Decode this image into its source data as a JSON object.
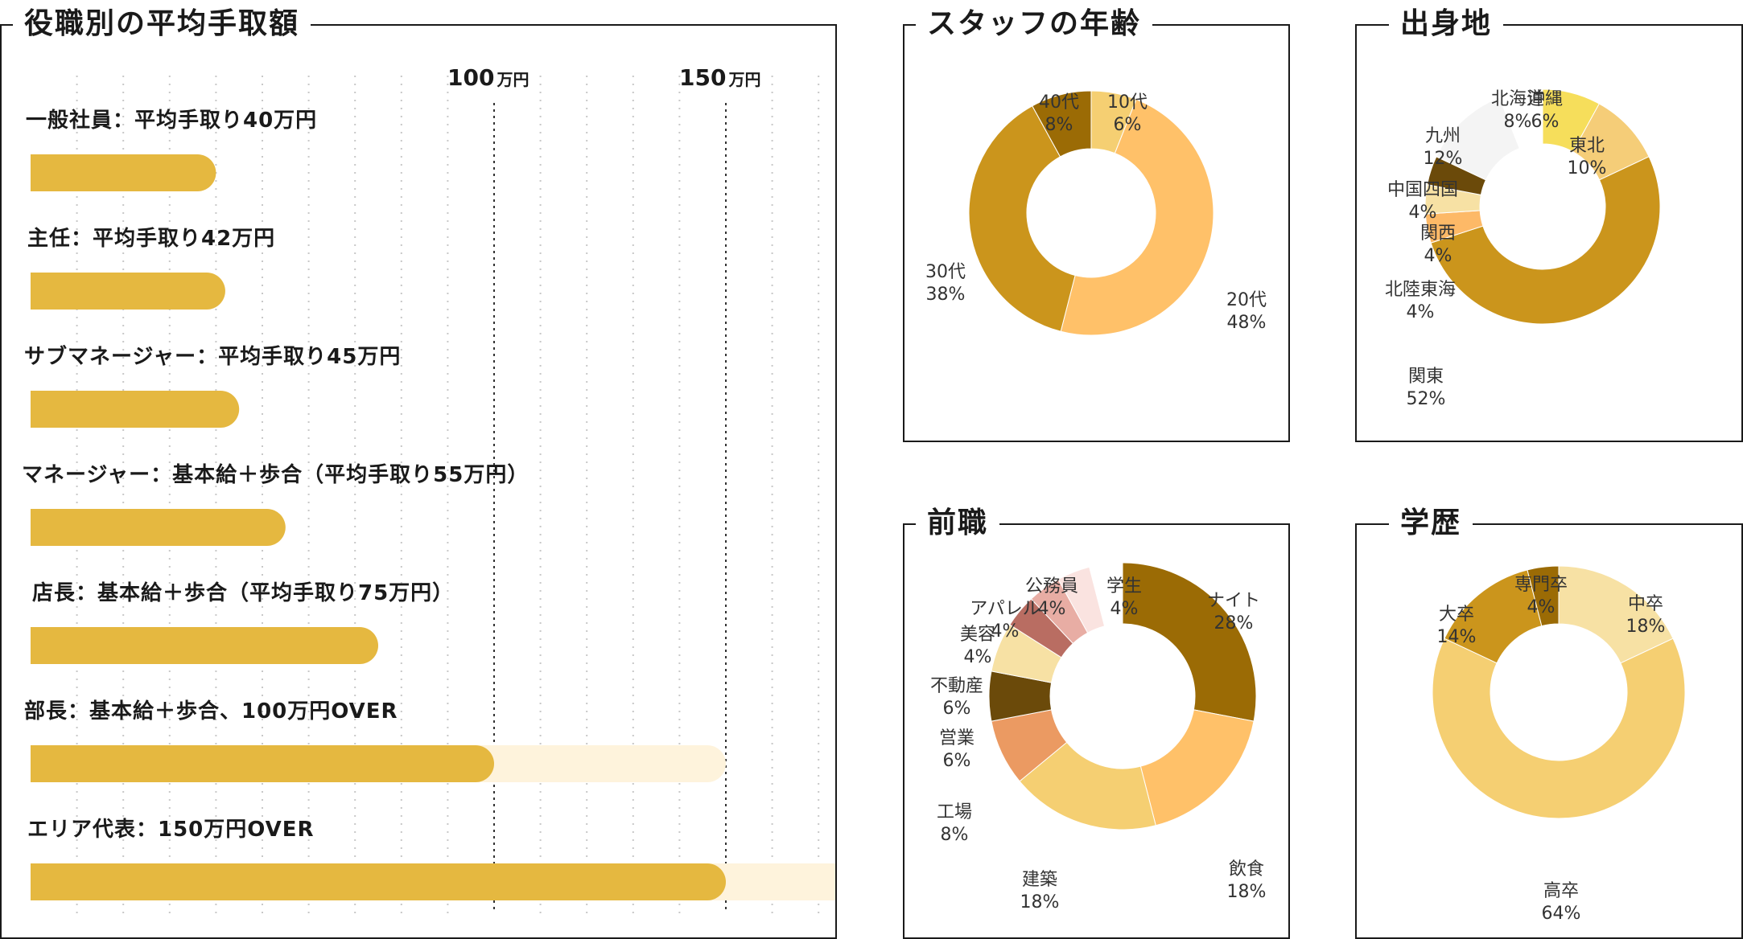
{
  "colors": {
    "bar": "#E5B840",
    "bar_extension": "#FEF3DC",
    "grid": "#C8C8C8",
    "marker": "#333333",
    "border": "#1A1A1A"
  },
  "chart_data": [
    {
      "type": "bar",
      "title": "役職別の平均手取額",
      "orientation": "horizontal",
      "unit": "万円",
      "xlim": [
        0,
        180
      ],
      "scale_marks": [
        {
          "value": 100,
          "label": "100",
          "unit": "万円"
        },
        {
          "value": 150,
          "label": "150",
          "unit": "万円"
        }
      ],
      "bars": [
        {
          "label": "一般社員：平均手取り40万円",
          "value": 40
        },
        {
          "label": "主任：平均手取り42万円",
          "value": 42
        },
        {
          "label": "サブマネージャー：平均手取り45万円",
          "value": 45
        },
        {
          "label": "マネージャー：基本給＋歩合（平均手取り55万円）",
          "value": 55
        },
        {
          "label": "店長：基本給＋歩合（平均手取り75万円）",
          "value": 75
        },
        {
          "label": "部長：基本給＋歩合、100万円OVER",
          "value": 100,
          "extension_to": 150
        },
        {
          "label": "エリア代表：150万円OVER",
          "value": 150,
          "extension_to": 180
        }
      ]
    },
    {
      "type": "pie",
      "title": "スタッフの年齢",
      "slices": [
        {
          "label": "10代",
          "pct": "6%",
          "value": 6,
          "color": "#F5CF72"
        },
        {
          "label": "20代",
          "pct": "48%",
          "value": 48,
          "color": "#FFC169"
        },
        {
          "label": "30代",
          "pct": "38%",
          "value": 38,
          "color": "#CB951C"
        },
        {
          "label": "40代",
          "pct": "8%",
          "value": 8,
          "color": "#9B6B05"
        }
      ]
    },
    {
      "type": "pie",
      "title": "出身地",
      "slices": [
        {
          "label": "北海道",
          "pct": "8%",
          "value": 8,
          "color": "#F6DE5B"
        },
        {
          "label": "東北",
          "pct": "10%",
          "value": 10,
          "color": "#F5CD78"
        },
        {
          "label": "関東",
          "pct": "52%",
          "value": 52,
          "color": "#CB951C"
        },
        {
          "label": "北陸東海",
          "pct": "4%",
          "value": 4,
          "color": "#FDB967"
        },
        {
          "label": "関西",
          "pct": "4%",
          "value": 4,
          "color": "#F7E1A4"
        },
        {
          "label": "中国四国",
          "pct": "4%",
          "value": 4,
          "color": "#6B4A0A"
        },
        {
          "label": "九州",
          "pct": "12%",
          "value": 12,
          "color": "#F4F4F4"
        },
        {
          "label": "沖縄",
          "pct": "6%",
          "value": 6,
          "color": "#FFFFFF"
        }
      ]
    },
    {
      "type": "pie",
      "title": "前職",
      "slices": [
        {
          "label": "ナイト",
          "pct": "28%",
          "value": 28,
          "color": "#9B6B05"
        },
        {
          "label": "飲食",
          "pct": "18%",
          "value": 18,
          "color": "#FFC169"
        },
        {
          "label": "建築",
          "pct": "18%",
          "value": 18,
          "color": "#F5CF72"
        },
        {
          "label": "工場",
          "pct": "8%",
          "value": 8,
          "color": "#EB9A62"
        },
        {
          "label": "営業",
          "pct": "6%",
          "value": 6,
          "color": "#6B4A0A"
        },
        {
          "label": "不動産",
          "pct": "6%",
          "value": 6,
          "color": "#F7E1A4"
        },
        {
          "label": "美容",
          "pct": "4%",
          "value": 4,
          "color": "#B96D62"
        },
        {
          "label": "アパレル",
          "pct": "4%",
          "value": 4,
          "color": "#E8ADA4"
        },
        {
          "label": "公務員",
          "pct": "4%",
          "value": 4,
          "color": "#FAE3E0"
        },
        {
          "label": "学生",
          "pct": "4%",
          "value": 4,
          "color": "#FFFFFF"
        }
      ]
    },
    {
      "type": "pie",
      "title": "学歴",
      "slices": [
        {
          "label": "中卒",
          "pct": "18%",
          "value": 18,
          "color": "#F7E1A4"
        },
        {
          "label": "高卒",
          "pct": "64%",
          "value": 64,
          "color": "#F5CF72"
        },
        {
          "label": "大卒",
          "pct": "14%",
          "value": 14,
          "color": "#CB951C"
        },
        {
          "label": "専門卒",
          "pct": "4%",
          "value": 4,
          "color": "#9B6B05"
        }
      ]
    }
  ]
}
